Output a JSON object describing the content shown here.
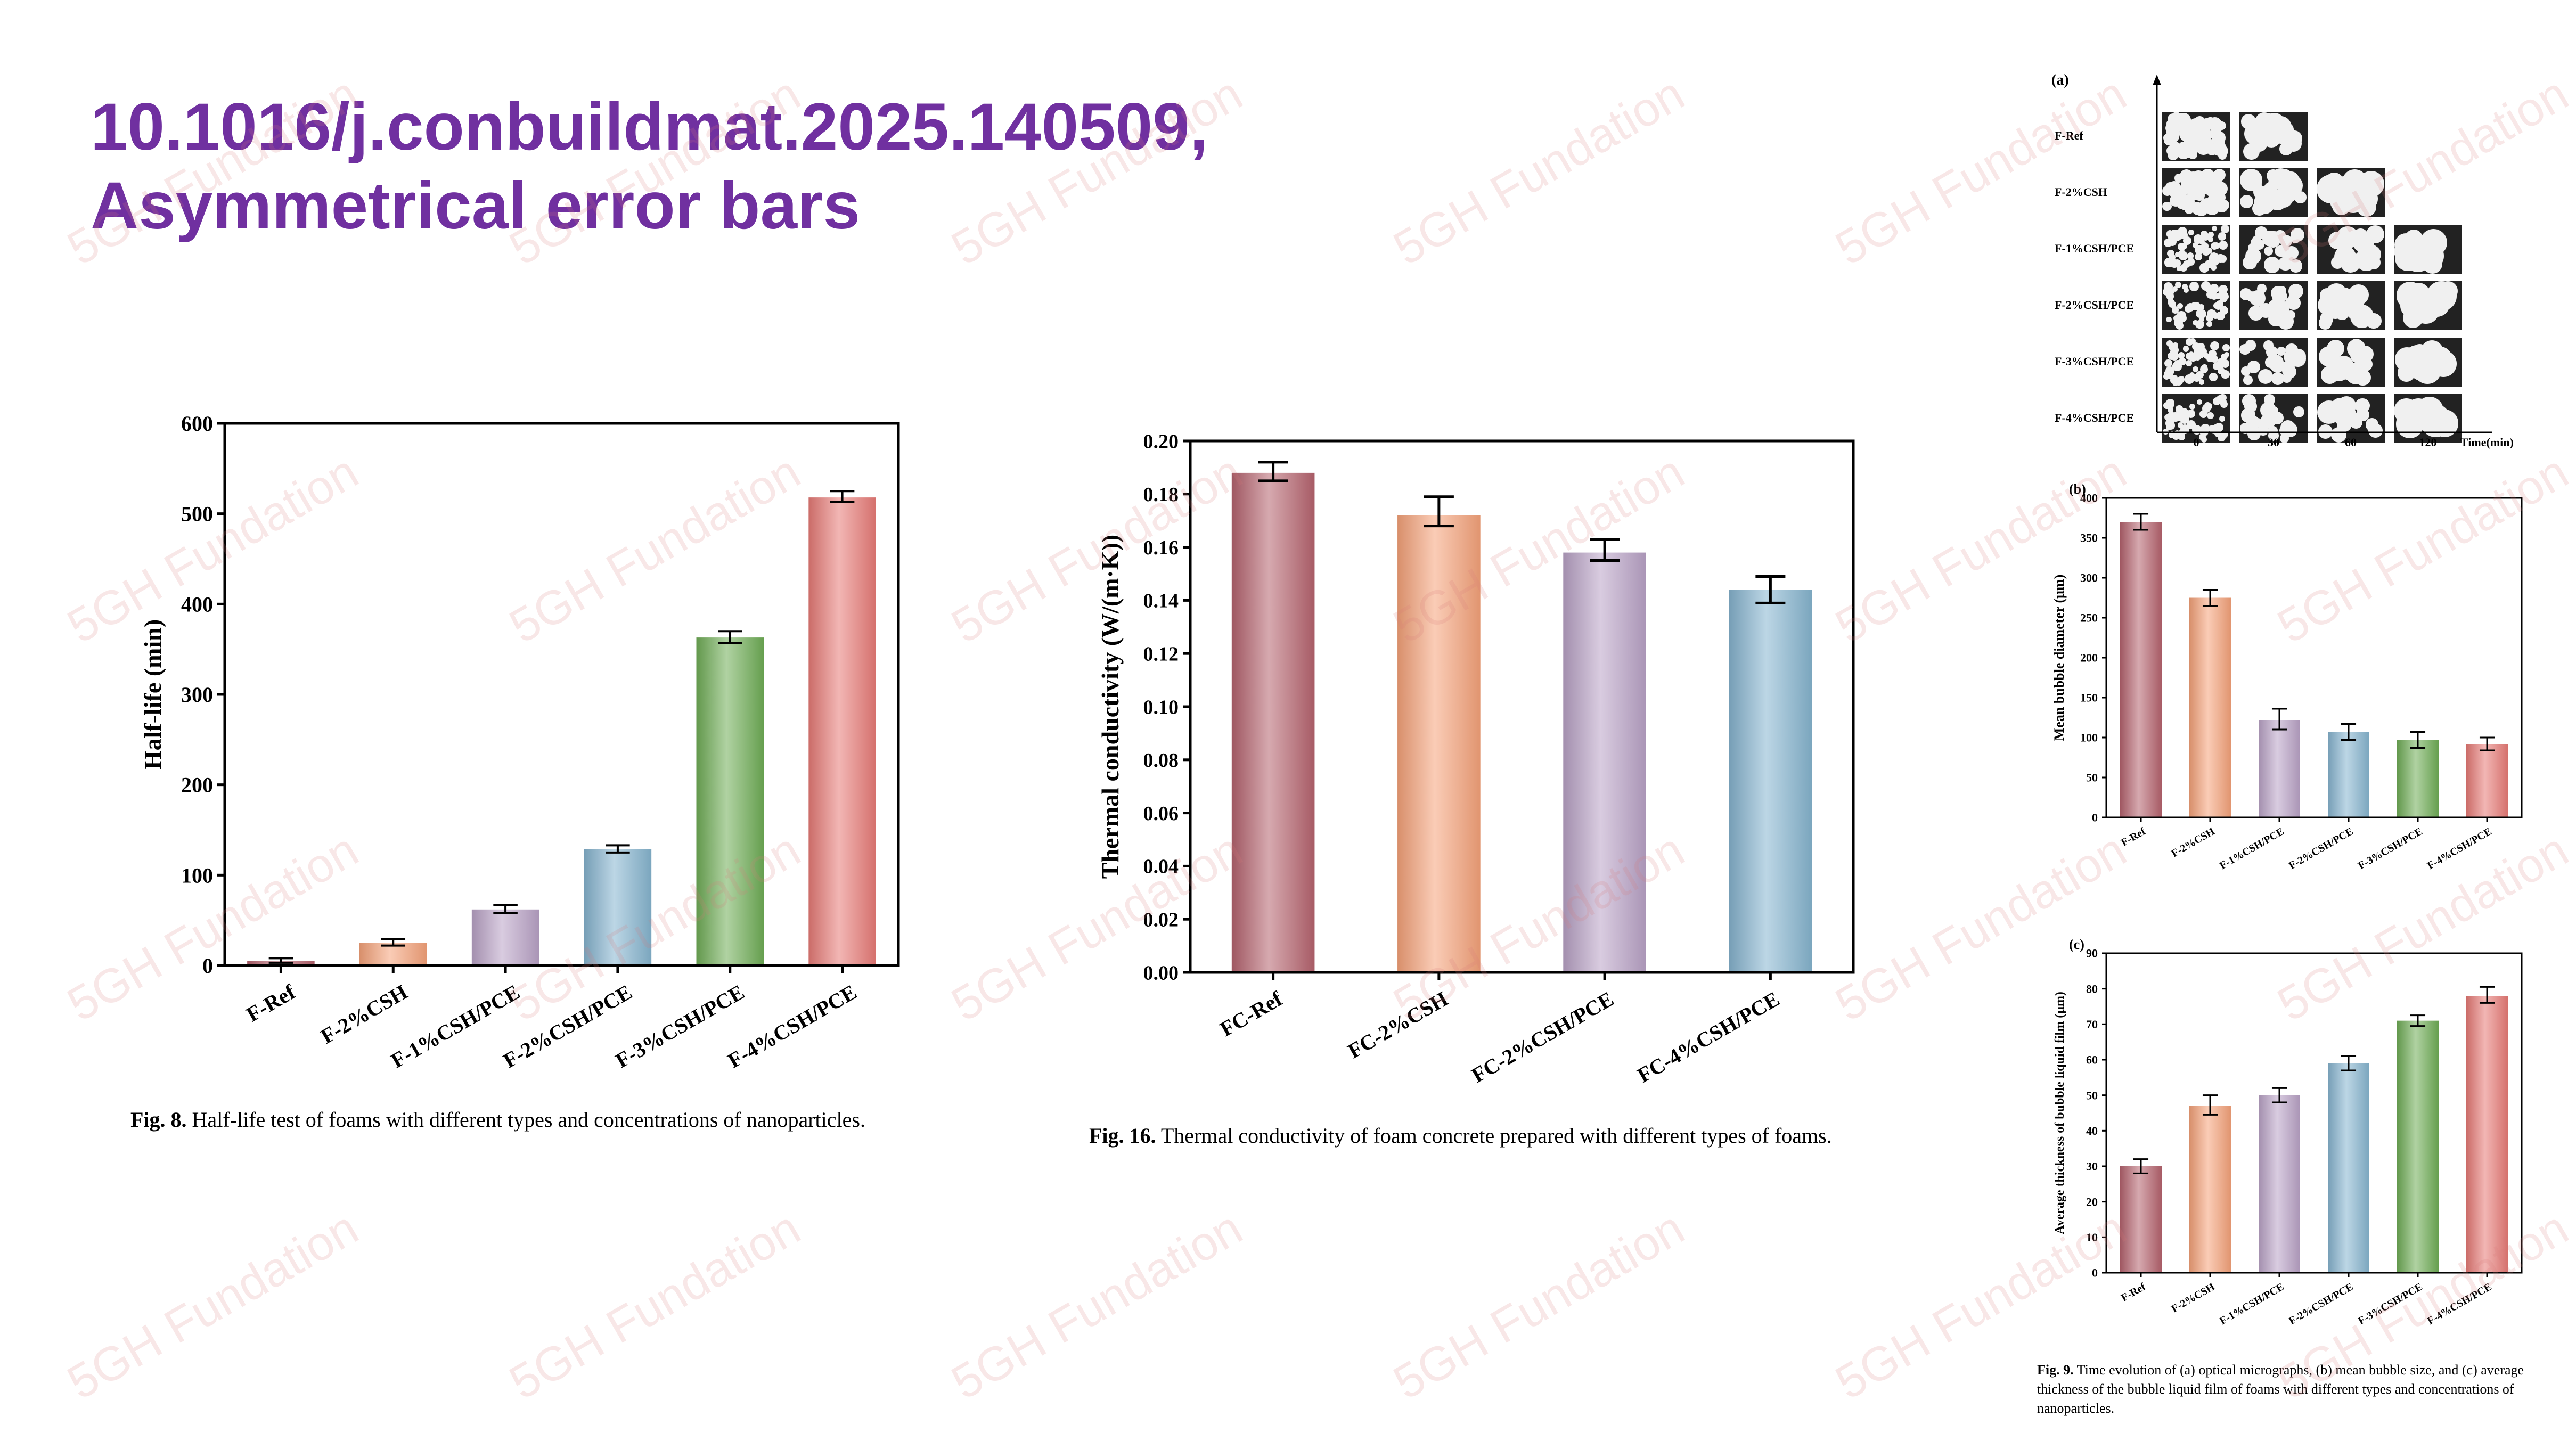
{
  "title": {
    "line1": "10.1016/j.conbuildmat.2025.140509,",
    "line2": "Asymmetrical error bars"
  },
  "watermark": "5GH Fundation",
  "colors": {
    "title": "#7030a0",
    "F-Ref": "#b5636e",
    "F-2%CSH": "#f5a27a",
    "F-1%CSH/PCE": "#b9a2c6",
    "F-2%CSH/PCE": "#86b4cf",
    "F-3%CSH/PCE": "#6fad56",
    "F-4%CSH/PCE": "#e77b76"
  },
  "fig8": {
    "caption_label": "Fig. 8.",
    "caption_text": "Half-life test of foams with different types and concentrations of nanoparticles."
  },
  "fig16": {
    "caption_label": "Fig. 16.",
    "caption_text": "Thermal conductivity of foam concrete prepared with different types of foams."
  },
  "fig9": {
    "caption_label": "Fig. 9.",
    "caption_text": "Time evolution of (a) optical micrographs, (b) mean bubble size, and (c) average thickness of the bubble liquid film of foams with different types and concentrations of nanoparticles.",
    "panel_a": {
      "letter": "(a)",
      "rows": [
        "F-Ref",
        "F-2%CSH",
        "F-1%CSH/PCE",
        "F-2%CSH/PCE",
        "F-3%CSH/PCE",
        "F-4%CSH/PCE"
      ],
      "time_ticks": [
        "0",
        "30",
        "60",
        "120"
      ],
      "time_label": "Time(min)"
    }
  },
  "chart_data": [
    {
      "id": "fig8",
      "type": "bar",
      "title": "",
      "xlabel": "",
      "ylabel": "Half-life (min)",
      "ylim": [
        0,
        600
      ],
      "yticks": [
        "0",
        "100",
        "200",
        "300",
        "400",
        "500",
        "600"
      ],
      "categories": [
        "F-Ref",
        "F-2%CSH",
        "F-1%CSH/PCE",
        "F-2%CSH/PCE",
        "F-3%CSH/PCE",
        "F-4%CSH/PCE"
      ],
      "values": [
        5,
        25,
        62,
        129,
        363,
        518
      ],
      "error_upper": [
        3,
        4,
        5,
        4,
        7,
        7
      ],
      "error_lower": [
        2,
        3,
        4,
        4,
        6,
        5
      ],
      "grid": false
    },
    {
      "id": "fig16",
      "type": "bar",
      "title": "",
      "xlabel": "",
      "ylabel": "Thermal conductivity (W/(m·K))",
      "ylim": [
        0,
        0.2
      ],
      "yticks": [
        "0.00",
        "0.02",
        "0.04",
        "0.06",
        "0.08",
        "0.10",
        "0.12",
        "0.14",
        "0.16",
        "0.18",
        "0.20"
      ],
      "categories": [
        "FC-Ref",
        "FC-2%CSH",
        "FC-2%CSH/PCE",
        "FC-4%CSH/PCE"
      ],
      "values": [
        0.188,
        0.172,
        0.158,
        0.144
      ],
      "error_upper": [
        0.004,
        0.007,
        0.005,
        0.005
      ],
      "error_lower": [
        0.003,
        0.004,
        0.003,
        0.005
      ],
      "grid": false
    },
    {
      "id": "fig9b",
      "type": "bar",
      "title": "",
      "panel": "(b)",
      "xlabel": "",
      "ylabel": "Mean bubble diameter (μm)",
      "ylim": [
        0,
        400
      ],
      "yticks": [
        "0",
        "50",
        "100",
        "150",
        "200",
        "250",
        "300",
        "350",
        "400"
      ],
      "categories": [
        "F-Ref",
        "F-2%CSH",
        "F-1%CSH/PCE",
        "F-2%CSH/PCE",
        "F-3%CSH/PCE",
        "F-4%CSH/PCE"
      ],
      "values": [
        370,
        275,
        122,
        107,
        97,
        92
      ],
      "error_upper": [
        10,
        10,
        14,
        10,
        10,
        8
      ],
      "error_lower": [
        10,
        10,
        12,
        10,
        10,
        8
      ],
      "grid": false
    },
    {
      "id": "fig9c",
      "type": "bar",
      "title": "",
      "panel": "(c)",
      "xlabel": "",
      "ylabel": "Average thickness of bubble liquid film (μm)",
      "ylim": [
        0,
        90
      ],
      "yticks": [
        "0",
        "10",
        "20",
        "30",
        "40",
        "50",
        "60",
        "70",
        "80",
        "90"
      ],
      "categories": [
        "F-Ref",
        "F-2%CSH",
        "F-1%CSH/PCE",
        "F-2%CSH/PCE",
        "F-3%CSH/PCE",
        "F-4%CSH/PCE"
      ],
      "values": [
        30,
        47,
        50,
        59,
        71,
        78
      ],
      "error_upper": [
        2,
        3,
        2,
        2,
        1.5,
        2.5
      ],
      "error_lower": [
        2,
        2.5,
        2,
        2,
        1.5,
        2
      ],
      "grid": false
    }
  ]
}
